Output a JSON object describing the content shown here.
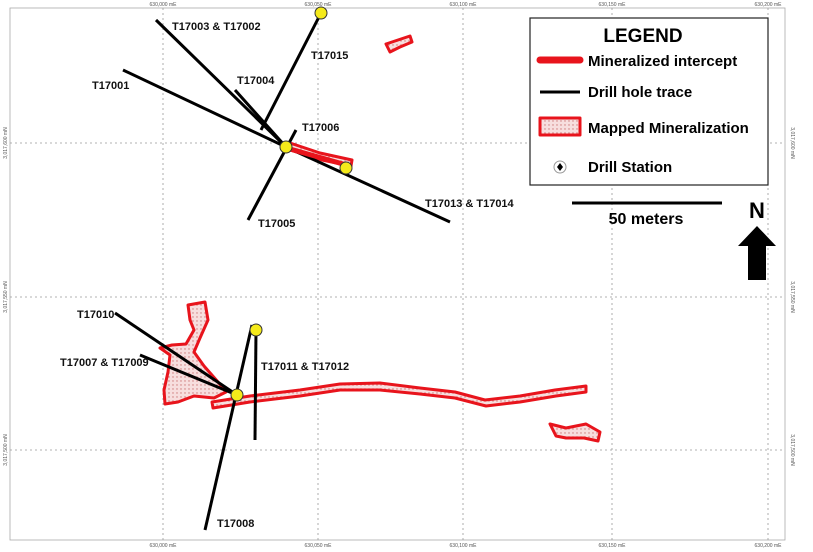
{
  "legend": {
    "title": "LEGEND",
    "items": [
      "Mineralized intercept",
      "Drill hole trace",
      "Mapped Mineralization",
      "Drill Station"
    ]
  },
  "scale_bar": "50 meters",
  "north": "N",
  "grid_labels": {
    "x": [
      "630,000 mE",
      "630,050 mE",
      "630,100 mE",
      "630,150 mE",
      "630,200 mE"
    ],
    "y": [
      "3,017,600 mN",
      "3,017,550 mN",
      "3,017,500 mN"
    ]
  },
  "drill_holes": [
    "T17003 & T17002",
    "T17015",
    "T17001",
    "T17004",
    "T17006",
    "T17005",
    "T17013 & T17014",
    "T17010",
    "T17007 & T17009",
    "T17011 & T17012",
    "T17008"
  ]
}
